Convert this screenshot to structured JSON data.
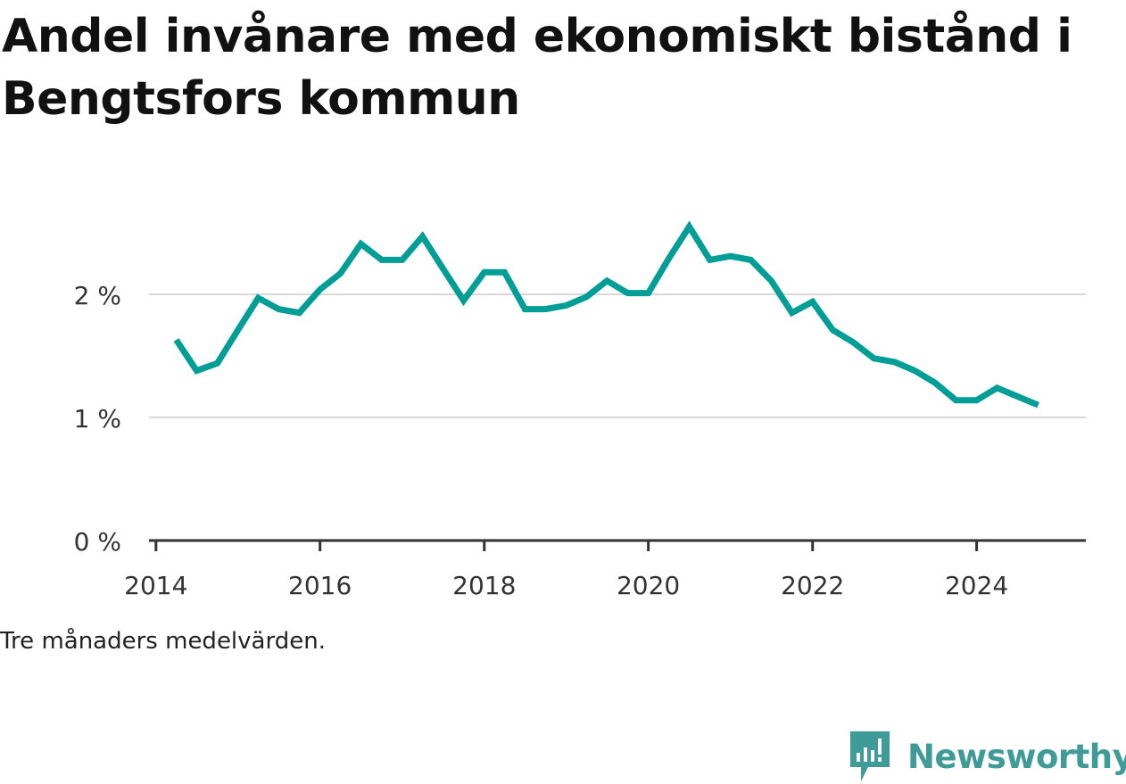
{
  "title": "Andel invånare med ekonomiskt bistånd i Bengtsfors kommun",
  "caption": "Tre månaders medelvärden.",
  "brand": {
    "name": "Newsworthy",
    "logo_icon": "bar-chart-speech-bubble-icon",
    "color": "#3e9b97"
  },
  "chart_data": {
    "type": "line",
    "title": "Andel invånare med ekonomiskt bistånd i Bengtsfors kommun",
    "xlabel": "",
    "ylabel": "",
    "x_ticks": [
      "2014",
      "2016",
      "2018",
      "2020",
      "2022",
      "2024"
    ],
    "y_ticks": [
      "0 %",
      "1 %",
      "2 %"
    ],
    "ylim": [
      0,
      2.7
    ],
    "xlim": [
      "2013-12-01",
      "2025-05-01"
    ],
    "grid": true,
    "line_color": "#009e96",
    "series": [
      {
        "name": "",
        "x": [
          "2014-04",
          "2014-07",
          "2014-10",
          "2015-01",
          "2015-04",
          "2015-07",
          "2015-10",
          "2016-01",
          "2016-04",
          "2016-07",
          "2016-10",
          "2017-01",
          "2017-04",
          "2017-07",
          "2017-10",
          "2018-01",
          "2018-04",
          "2018-07",
          "2018-10",
          "2019-01",
          "2019-04",
          "2019-07",
          "2019-10",
          "2020-01",
          "2020-04",
          "2020-07",
          "2020-10",
          "2021-01",
          "2021-04",
          "2021-07",
          "2021-10",
          "2022-01",
          "2022-04",
          "2022-07",
          "2022-10",
          "2023-01",
          "2023-04",
          "2023-07",
          "2023-10",
          "2024-01",
          "2024-04",
          "2024-07",
          "2024-10"
        ],
        "values": [
          1.63,
          1.38,
          1.44,
          1.71,
          1.97,
          1.88,
          1.85,
          2.04,
          2.17,
          2.41,
          2.28,
          2.28,
          2.47,
          2.21,
          1.95,
          2.18,
          2.18,
          1.88,
          1.88,
          1.91,
          1.98,
          2.11,
          2.01,
          2.01,
          2.29,
          2.55,
          2.28,
          2.31,
          2.28,
          2.11,
          1.85,
          1.94,
          1.71,
          1.61,
          1.48,
          1.45,
          1.38,
          1.28,
          1.14,
          1.14,
          1.24,
          1.17,
          1.1
        ]
      }
    ]
  }
}
